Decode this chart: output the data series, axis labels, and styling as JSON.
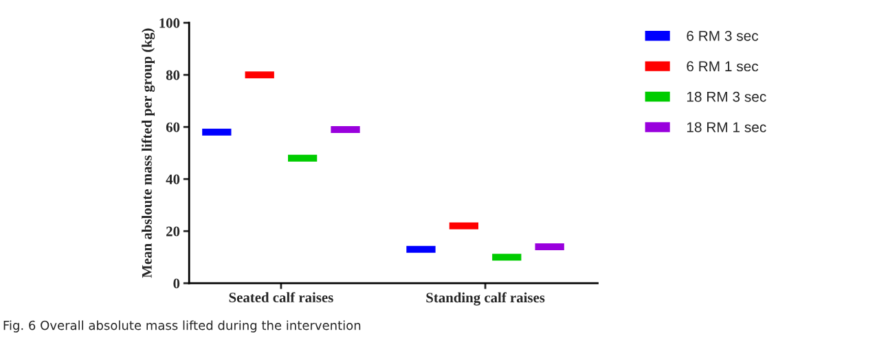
{
  "chart_data": {
    "type": "bar",
    "ylabel": "Mean absloute mass lifted per group (kg)",
    "categories": [
      "Seated calf raises",
      "Standing calf raises"
    ],
    "series": [
      {
        "name": "6 RM 3 sec",
        "color": "#0000ff",
        "base": [
          56.5,
          11.5
        ],
        "values": [
          3,
          3
        ]
      },
      {
        "name": "6 RM 1 sec",
        "color": "#ff0000",
        "base": [
          78.5,
          20.5
        ],
        "values": [
          3,
          3
        ]
      },
      {
        "name": "18 RM 3 sec",
        "color": "#00cc00",
        "base": [
          46.5,
          8.5
        ],
        "values": [
          3,
          3
        ]
      },
      {
        "name": "18 RM 1 sec",
        "color": "#9900dd",
        "base": [
          57.5,
          12.5
        ],
        "values": [
          3,
          3
        ]
      }
    ],
    "ylim": [
      0,
      100
    ],
    "yticks": [
      0,
      20,
      40,
      60,
      80,
      100
    ],
    "grid": false,
    "legend": "right",
    "annotations": [
      "Fig. 6 Overall absolute mass lifted during the intervention"
    ]
  }
}
